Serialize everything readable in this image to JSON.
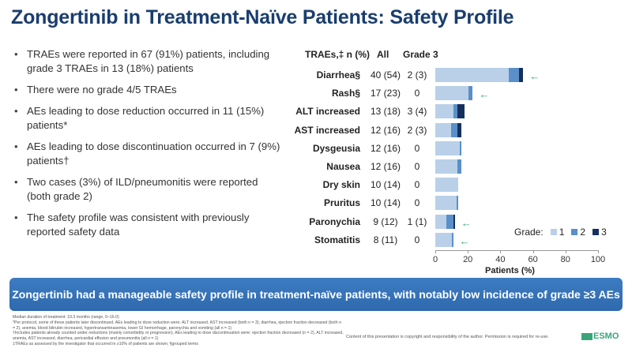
{
  "title": "Zongertinib in Treatment-Naïve Patients: Safety Profile",
  "bullets": [
    "TRAEs were reported in 67 (91%) patients, including grade 3 TRAEs in 13 (18%) patients",
    "There were no grade 4/5 TRAEs",
    "AEs leading to dose reduction occurred in 11 (15%) patients*",
    "AEs leading to dose discontinuation occurred in 7 (9%) patients†",
    "Two cases (3%) of ILD/pneumonitis were reported (both grade 2)",
    "The safety profile was consistent with previously reported safety data"
  ],
  "chart_data": {
    "type": "bar",
    "orientation": "horizontal-stacked",
    "headers": {
      "label": "TRAEs,‡ n (%)",
      "all": "All",
      "grade3": "Grade 3"
    },
    "categories": [
      "Diarrhea§",
      "Rash§",
      "ALT increased",
      "AST increased",
      "Dysgeusia",
      "Nausea",
      "Dry skin",
      "Pruritus",
      "Paronychia",
      "Stomatitis"
    ],
    "all": [
      "40 (54)",
      "17 (23)",
      "13 (18)",
      "12 (16)",
      "12 (16)",
      "12 (16)",
      "10 (14)",
      "10 (14)",
      "9 (12)",
      "8 (11)"
    ],
    "grade3_text": [
      "2 (3)",
      "0",
      "3 (4)",
      "2 (3)",
      "0",
      "0",
      "0",
      "0",
      "1 (1)",
      "0"
    ],
    "series": [
      {
        "name": "1",
        "color": "#b9d0e8",
        "values": [
          45,
          20.5,
          11,
          9.5,
          15,
          13.5,
          14,
          13,
          7,
          10
        ]
      },
      {
        "name": "2",
        "color": "#5b8fc9",
        "values": [
          6.5,
          2.5,
          2.5,
          4,
          1,
          2.5,
          0,
          1,
          4,
          1
        ]
      },
      {
        "name": "3",
        "color": "#14305e",
        "values": [
          2.5,
          0,
          4.5,
          2.5,
          0,
          0,
          0,
          0,
          1,
          0
        ]
      }
    ],
    "highlighted": [
      true,
      true,
      false,
      false,
      false,
      false,
      false,
      false,
      true,
      true
    ],
    "legend_title": "Grade:",
    "legend_position": "bottom-right",
    "xlabel": "Patients (%)",
    "xlim": [
      0,
      100
    ],
    "xticks": [
      "0",
      "20",
      "40",
      "60",
      "80",
      "100"
    ]
  },
  "banner": "Zongertinib had a manageable safety profile in treatment-naïve patients, with notably low incidence of grade ≥3 AEs",
  "footnotes": [
    "Median duration of treatment: 10.3 months (range, 0–16.0)",
    "*Per protocol, some of these patients later discontinued. AEs leading to dose reduction were: ALT increased, AST increased (both n = 3), diarrhea, ejection fraction decreased (both n = 2), anemia, blood bilirubin increased, hypertransaminasemia, lower GI hemorrhage, paronychia and vomiting (all n = 1)",
    "†Includes patients already counted under reductions (mainly comorbidity or progression). AEs leading to dose discontinuation were: ejection fraction decreased (n = 2), ALT increased, anemia, AST increased, diarrhea, pericardial effusion and pneumonitis (all n = 1)",
    "‡TRAEs as assessed by the investigator that occurred in ≥10% of patients are shown; §grouped terms"
  ],
  "copyright": "Content of this presentation is copyright and responsibility of the author. Permission is required for re-use.",
  "logo": "ESMO congress"
}
